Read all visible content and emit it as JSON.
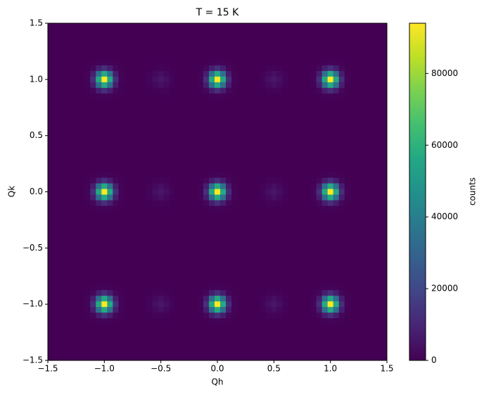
{
  "chart_data": {
    "type": "heatmap",
    "title": "T = 15 K",
    "x_label": "Qh",
    "y_label": "Qk",
    "colorbar_label": "counts",
    "colormap": "viridis",
    "x": [
      -1,
      0,
      1,
      -1,
      0,
      1,
      -1,
      0,
      1,
      -0.5,
      0.5,
      -0.5,
      0.5,
      -0.5,
      0.5
    ],
    "y": [
      1,
      1,
      1,
      0,
      0,
      0,
      -1,
      -1,
      -1,
      1,
      1,
      0,
      0,
      -1,
      -1
    ],
    "values": [
      94000,
      94000,
      94000,
      94000,
      94000,
      94000,
      94000,
      94000,
      94000,
      6000,
      6000,
      6000,
      6000,
      6000,
      6000
    ],
    "xlim": [
      -1.5,
      1.5
    ],
    "ylim": [
      -1.5,
      1.5
    ],
    "xticks": [
      {
        "value": -1.5,
        "label": "−1.5"
      },
      {
        "value": -1,
        "label": "−1.0"
      },
      {
        "value": -0.5,
        "label": "−0.5"
      },
      {
        "value": 0,
        "label": "0.0"
      },
      {
        "value": 0.5,
        "label": "0.5"
      },
      {
        "value": 1,
        "label": "1.0"
      },
      {
        "value": 1.5,
        "label": "1.5"
      }
    ],
    "yticks": [
      {
        "value": -1.5,
        "label": "−1.5"
      },
      {
        "value": -1,
        "label": "−1.0"
      },
      {
        "value": -0.5,
        "label": "−0.5"
      },
      {
        "value": 0,
        "label": "0.0"
      },
      {
        "value": 0.5,
        "label": "0.5"
      },
      {
        "value": 1,
        "label": "1.0"
      },
      {
        "value": 1.5,
        "label": "1.5"
      }
    ],
    "clim": [
      0,
      94000
    ],
    "cticks": [
      0,
      20000,
      40000,
      60000,
      80000
    ]
  }
}
